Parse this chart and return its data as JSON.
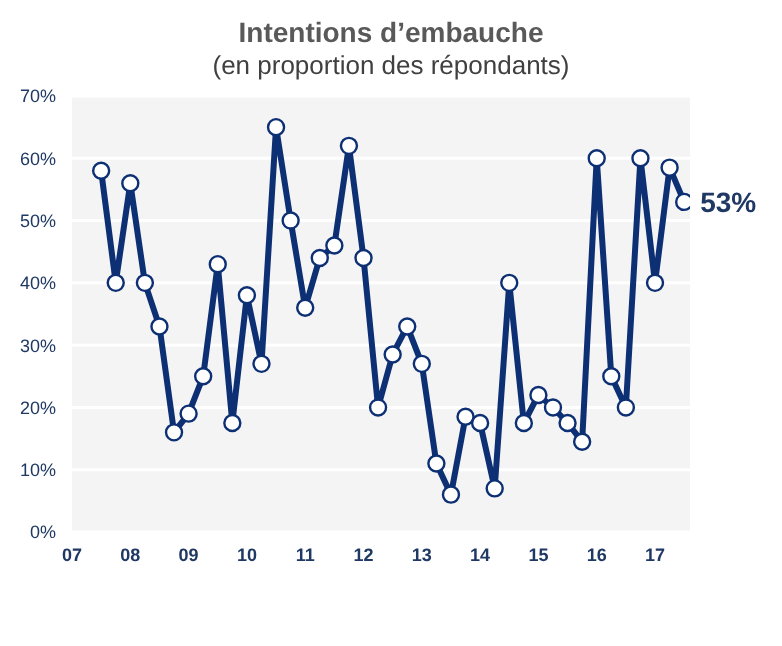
{
  "chart_data": {
    "type": "line",
    "title": "Intentions d’embauche",
    "subtitle": "(en proportion des répondants)",
    "x": [
      2007.5,
      2007.75,
      2008,
      2008.25,
      2008.5,
      2008.75,
      2009,
      2009.25,
      2009.5,
      2009.75,
      2010,
      2010.25,
      2010.5,
      2010.75,
      2011,
      2011.25,
      2011.5,
      2011.75,
      2012,
      2012.25,
      2012.5,
      2012.75,
      2013,
      2013.25,
      2013.5,
      2013.75,
      2014,
      2014.25,
      2014.5,
      2014.75,
      2015,
      2015.25,
      2015.5,
      2015.75,
      2016,
      2016.25,
      2016.5,
      2016.75,
      2017,
      2017.25,
      2017.5
    ],
    "series": [
      {
        "color": "#0d2f73",
        "values": [
          58,
          40,
          56,
          40,
          33,
          16,
          19,
          25,
          43,
          17.5,
          38,
          27,
          65,
          50,
          36,
          44,
          46,
          62,
          44,
          20,
          28.5,
          33,
          27,
          11,
          6,
          18.5,
          17.5,
          7,
          40,
          17.5,
          22,
          20,
          17.5,
          14.5,
          60,
          25,
          20,
          60,
          40,
          58.5,
          53
        ]
      }
    ],
    "xlim": [
      2007,
      2017.6
    ],
    "xticks": [
      {
        "value": 2007,
        "label": "07"
      },
      {
        "value": 2008,
        "label": "08"
      },
      {
        "value": 2009,
        "label": "09"
      },
      {
        "value": 2010,
        "label": "10"
      },
      {
        "value": 2011,
        "label": "11"
      },
      {
        "value": 2012,
        "label": "12"
      },
      {
        "value": 2013,
        "label": "13"
      },
      {
        "value": 2014,
        "label": "14"
      },
      {
        "value": 2015,
        "label": "15"
      },
      {
        "value": 2016,
        "label": "16"
      },
      {
        "value": 2017,
        "label": "17"
      }
    ],
    "ylim": [
      0,
      70
    ],
    "yticks": [
      {
        "value": 0,
        "label": "0%"
      },
      {
        "value": 10,
        "label": "10%"
      },
      {
        "value": 20,
        "label": "20%"
      },
      {
        "value": 30,
        "label": "30%"
      },
      {
        "value": 40,
        "label": "40%"
      },
      {
        "value": 50,
        "label": "50%"
      },
      {
        "value": 60,
        "label": "60%"
      },
      {
        "value": 70,
        "label": "70%"
      }
    ],
    "grid": "y",
    "marker": "circle",
    "line_style": "solid",
    "legend": false,
    "annotations": [
      {
        "text": "53%",
        "x": 2017.5,
        "y": 53
      }
    ]
  }
}
